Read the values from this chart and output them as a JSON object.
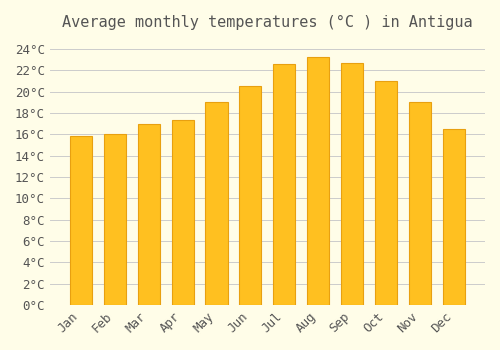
{
  "title": "Average monthly temperatures (°C ) in Antigua",
  "months": [
    "Jan",
    "Feb",
    "Mar",
    "Apr",
    "May",
    "Jun",
    "Jul",
    "Aug",
    "Sep",
    "Oct",
    "Nov",
    "Dec"
  ],
  "values": [
    15.8,
    16.0,
    17.0,
    17.3,
    19.0,
    20.5,
    22.6,
    23.2,
    22.7,
    21.0,
    19.0,
    16.5
  ],
  "bar_color": "#FFC020",
  "bar_edge_color": "#E8A010",
  "background_color": "#FFFDE8",
  "grid_color": "#CCCCCC",
  "text_color": "#555555",
  "ylim": [
    0,
    25
  ],
  "yticks": [
    0,
    2,
    4,
    6,
    8,
    10,
    12,
    14,
    16,
    18,
    20,
    22,
    24
  ],
  "title_fontsize": 11,
  "tick_fontsize": 9,
  "font_family": "monospace"
}
